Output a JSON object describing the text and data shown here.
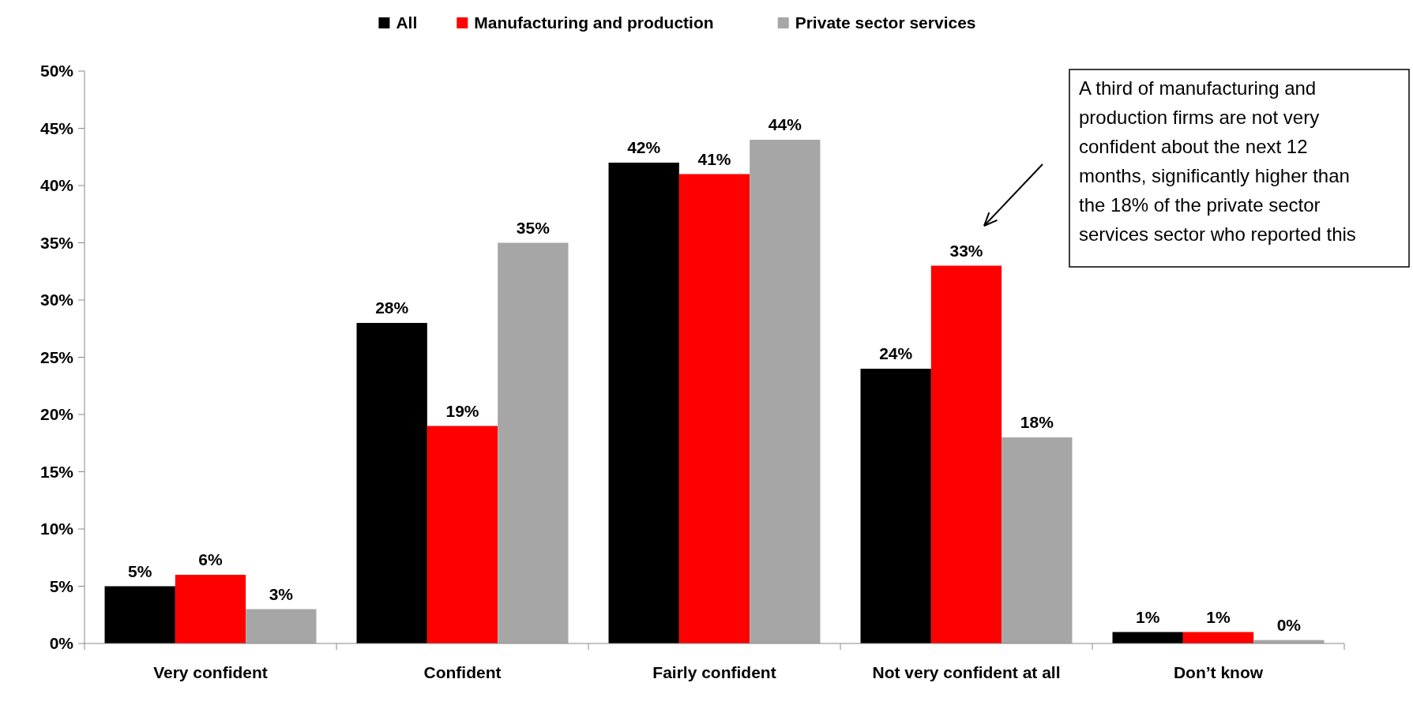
{
  "chart_data": {
    "type": "bar",
    "categories": [
      "Very confident",
      "Confident",
      "Fairly confident",
      "Not very confident at all",
      "Don’t know"
    ],
    "series": [
      {
        "name": "All",
        "color": "#000000",
        "values": [
          5,
          28,
          42,
          24,
          1
        ],
        "value_labels": [
          "5%",
          "28%",
          "42%",
          "24%",
          "1%"
        ]
      },
      {
        "name": "Manufacturing and production",
        "color": "#ff0000",
        "values": [
          6,
          19,
          41,
          33,
          1
        ],
        "value_labels": [
          "6%",
          "19%",
          "41%",
          "33%",
          "1%"
        ]
      },
      {
        "name": "Private sector services",
        "color": "#a6a6a6",
        "values": [
          3,
          35,
          44,
          18,
          0.3
        ],
        "value_labels": [
          "3%",
          "35%",
          "44%",
          "18%",
          "0%"
        ]
      }
    ],
    "ylim": [
      0,
      50
    ],
    "yticks": [
      {
        "value": 0,
        "label": "0%"
      },
      {
        "value": 5,
        "label": "5%"
      },
      {
        "value": 10,
        "label": "10%"
      },
      {
        "value": 15,
        "label": "15%"
      },
      {
        "value": 20,
        "label": "20%"
      },
      {
        "value": 25,
        "label": "25%"
      },
      {
        "value": 30,
        "label": "30%"
      },
      {
        "value": 35,
        "label": "35%"
      },
      {
        "value": 40,
        "label": "40%"
      },
      {
        "value": 45,
        "label": "45%"
      },
      {
        "value": 50,
        "label": "50%"
      }
    ],
    "legend": "top",
    "annotations": [
      "A third of manufacturing and production firms are not very confident about the next 12 months, significantly higher than the 18% of the private sector services sector who reported this"
    ]
  }
}
